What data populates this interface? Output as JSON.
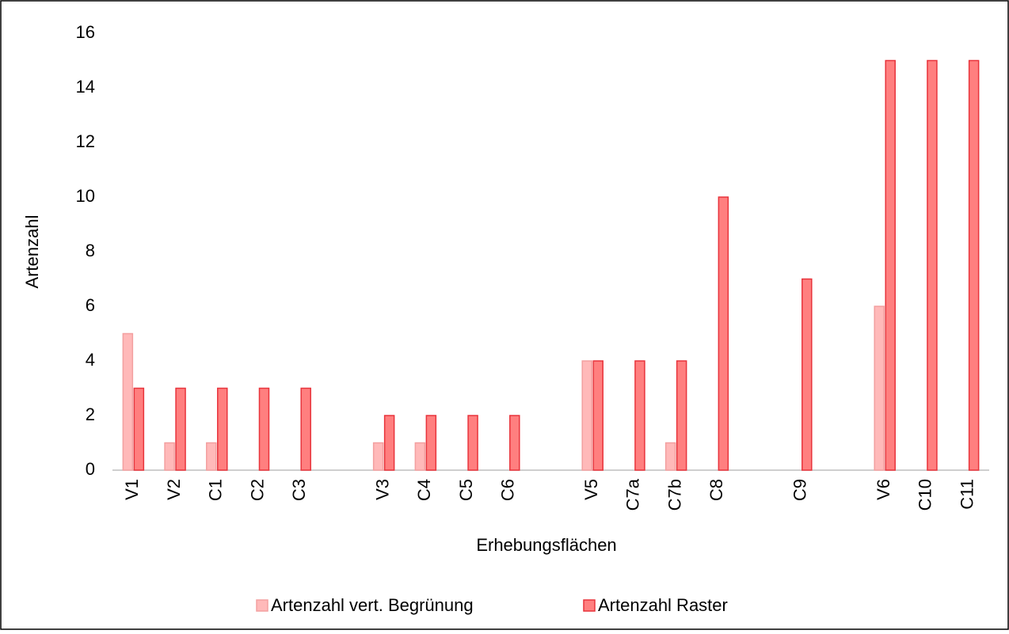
{
  "chart_data": {
    "type": "bar",
    "x_label": "Erhebungsflächen",
    "y_label": "Artenzahl",
    "categories": [
      "V1",
      "V2",
      "C1",
      "C2",
      "C3",
      null,
      "V3",
      "C4",
      "C5",
      "C6",
      null,
      "V5",
      "C7a",
      "C7b",
      "C8",
      null,
      "C9",
      null,
      "V6",
      "C10",
      "C11"
    ],
    "series": [
      {
        "name": "Artenzahl vert. Begrünung",
        "color": "#ffb9b9",
        "stroke": "#f3a0a0",
        "values": [
          5,
          1,
          1,
          null,
          null,
          null,
          1,
          1,
          null,
          null,
          null,
          4,
          null,
          1,
          null,
          null,
          null,
          null,
          6,
          null,
          null
        ]
      },
      {
        "name": "Artenzahl Raster",
        "color": "#ff7f7f",
        "stroke": "#e8343c",
        "values": [
          3,
          3,
          3,
          3,
          3,
          null,
          2,
          2,
          2,
          2,
          null,
          4,
          4,
          4,
          10,
          null,
          7,
          null,
          15,
          15,
          15
        ]
      }
    ],
    "ylim": [
      0,
      16
    ],
    "yticks": [
      0,
      2,
      4,
      6,
      8,
      10,
      12,
      14,
      16
    ],
    "grid": false,
    "legend": "bottom"
  }
}
